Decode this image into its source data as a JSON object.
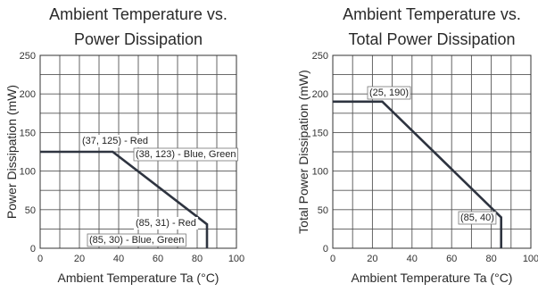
{
  "chart_data": [
    {
      "type": "line",
      "title_lines": [
        "Ambient Temperature vs.",
        "Power Dissipation"
      ],
      "xlabel": "Ambient Temperature Ta (°C)",
      "ylabel": "Power Dissipation (mW)",
      "xlim": [
        0,
        100
      ],
      "ylim": [
        0,
        250
      ],
      "x_ticks": [
        0,
        20,
        40,
        60,
        80,
        100
      ],
      "y_ticks": [
        0,
        50,
        100,
        150,
        200,
        250
      ],
      "grid": true,
      "series": [
        {
          "x": [
            0,
            37,
            85,
            85
          ],
          "y": [
            125,
            125,
            31,
            0
          ]
        }
      ],
      "annotations": [
        {
          "text": "(37, 125) - Red",
          "x": 37,
          "y": 125
        },
        {
          "text": "(38, 123) - Blue, Green",
          "x": 38,
          "y": 123
        },
        {
          "text": "(85, 31) - Red",
          "x": 85,
          "y": 31
        },
        {
          "text": "(85, 30) - Blue, Green",
          "x": 85,
          "y": 30
        }
      ]
    },
    {
      "type": "line",
      "title_lines": [
        "Ambient Temperature vs.",
        "Total Power Dissipation"
      ],
      "xlabel": "Ambient Temperature Ta (°C)",
      "ylabel": "Total Power Dissipation (mW)",
      "xlim": [
        0,
        100
      ],
      "ylim": [
        0,
        250
      ],
      "x_ticks": [
        0,
        20,
        40,
        60,
        80,
        100
      ],
      "y_ticks": [
        0,
        50,
        100,
        150,
        200,
        250
      ],
      "grid": true,
      "series": [
        {
          "x": [
            0,
            25,
            85,
            85
          ],
          "y": [
            190,
            190,
            40,
            0
          ]
        }
      ],
      "annotations": [
        {
          "text": "(25, 190)",
          "x": 25,
          "y": 190
        },
        {
          "text": "(85, 40)",
          "x": 85,
          "y": 40
        }
      ]
    }
  ]
}
